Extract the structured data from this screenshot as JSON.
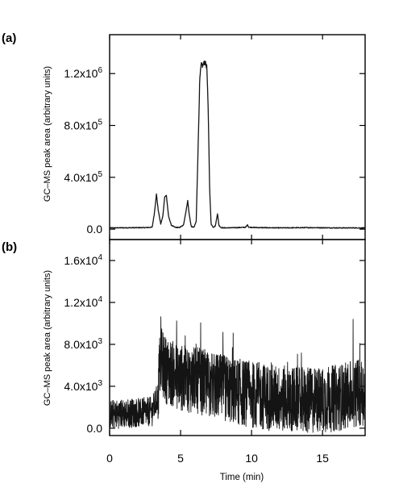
{
  "chart_data": [
    {
      "panel": "(a)",
      "type": "line",
      "ylabel": "GC–MS peak area (arbitrary units)",
      "xlim": [
        0,
        18
      ],
      "ylim": [
        -80000,
        1500000
      ],
      "yticks": [
        0,
        400000,
        800000,
        1200000
      ],
      "ytick_labels": [
        {
          "base": "0.0",
          "exp": ""
        },
        {
          "base": "4.0x10",
          "exp": "5"
        },
        {
          "base": "8.0x10",
          "exp": "5"
        },
        {
          "base": "1.2x10",
          "exp": "6"
        }
      ],
      "grid": false,
      "series": [
        {
          "x": [
            0,
            2.5,
            3.0,
            3.15,
            3.3,
            3.42,
            3.6,
            3.75,
            3.88,
            4.0,
            4.15,
            4.35,
            4.6,
            4.9,
            5.2,
            5.4,
            5.5,
            5.6,
            5.75,
            5.95,
            6.1,
            6.25,
            6.35,
            6.45,
            6.55,
            6.7,
            6.85,
            6.95,
            7.05,
            7.15,
            7.3,
            7.45,
            7.6,
            7.7,
            7.85,
            8.1,
            9.0,
            9.6,
            9.7,
            9.8,
            10.5,
            12,
            14,
            16,
            18
          ],
          "y": [
            10000,
            12000,
            15000,
            120000,
            270000,
            150000,
            40000,
            100000,
            250000,
            260000,
            100000,
            30000,
            15000,
            12000,
            30000,
            150000,
            220000,
            120000,
            20000,
            15000,
            60000,
            700000,
            1150000,
            1270000,
            1260000,
            1290000,
            1250000,
            900000,
            300000,
            40000,
            15000,
            25000,
            120000,
            30000,
            12000,
            10000,
            12000,
            15000,
            35000,
            15000,
            12000,
            10000,
            12000,
            10000,
            10000
          ]
        }
      ]
    },
    {
      "panel": "(b)",
      "type": "line",
      "ylabel": "GC–MS peak area (arbitrary units)",
      "xlabel": "Time (min)",
      "xlim": [
        0,
        18
      ],
      "xticks": [
        0,
        5,
        10,
        15
      ],
      "xtick_labels": [
        "0",
        "5",
        "10",
        "15"
      ],
      "ylim": [
        -700,
        18000
      ],
      "yticks": [
        0,
        4000,
        8000,
        12000,
        16000
      ],
      "ytick_labels": [
        {
          "base": "0.0",
          "exp": ""
        },
        {
          "base": "4.0x10",
          "exp": "3"
        },
        {
          "base": "8.0x10",
          "exp": "3"
        },
        {
          "base": "1.2x10",
          "exp": "4"
        },
        {
          "base": "1.6x10",
          "exp": "4"
        }
      ],
      "grid": false,
      "series": [
        {
          "description_free": true,
          "x": [
            0,
            1,
            2,
            3,
            3.4,
            3.5,
            3.6,
            4,
            5,
            6,
            7,
            8,
            9,
            10,
            11,
            12,
            13,
            14,
            15,
            16,
            17,
            17.5,
            18
          ],
          "y": [
            1300,
            1400,
            1500,
            1600,
            3000,
            5500,
            6500,
            5500,
            4800,
            4600,
            4200,
            3800,
            3500,
            3200,
            3000,
            2800,
            2700,
            2600,
            2700,
            2900,
            3200,
            3400,
            3500
          ]
        }
      ]
    }
  ]
}
